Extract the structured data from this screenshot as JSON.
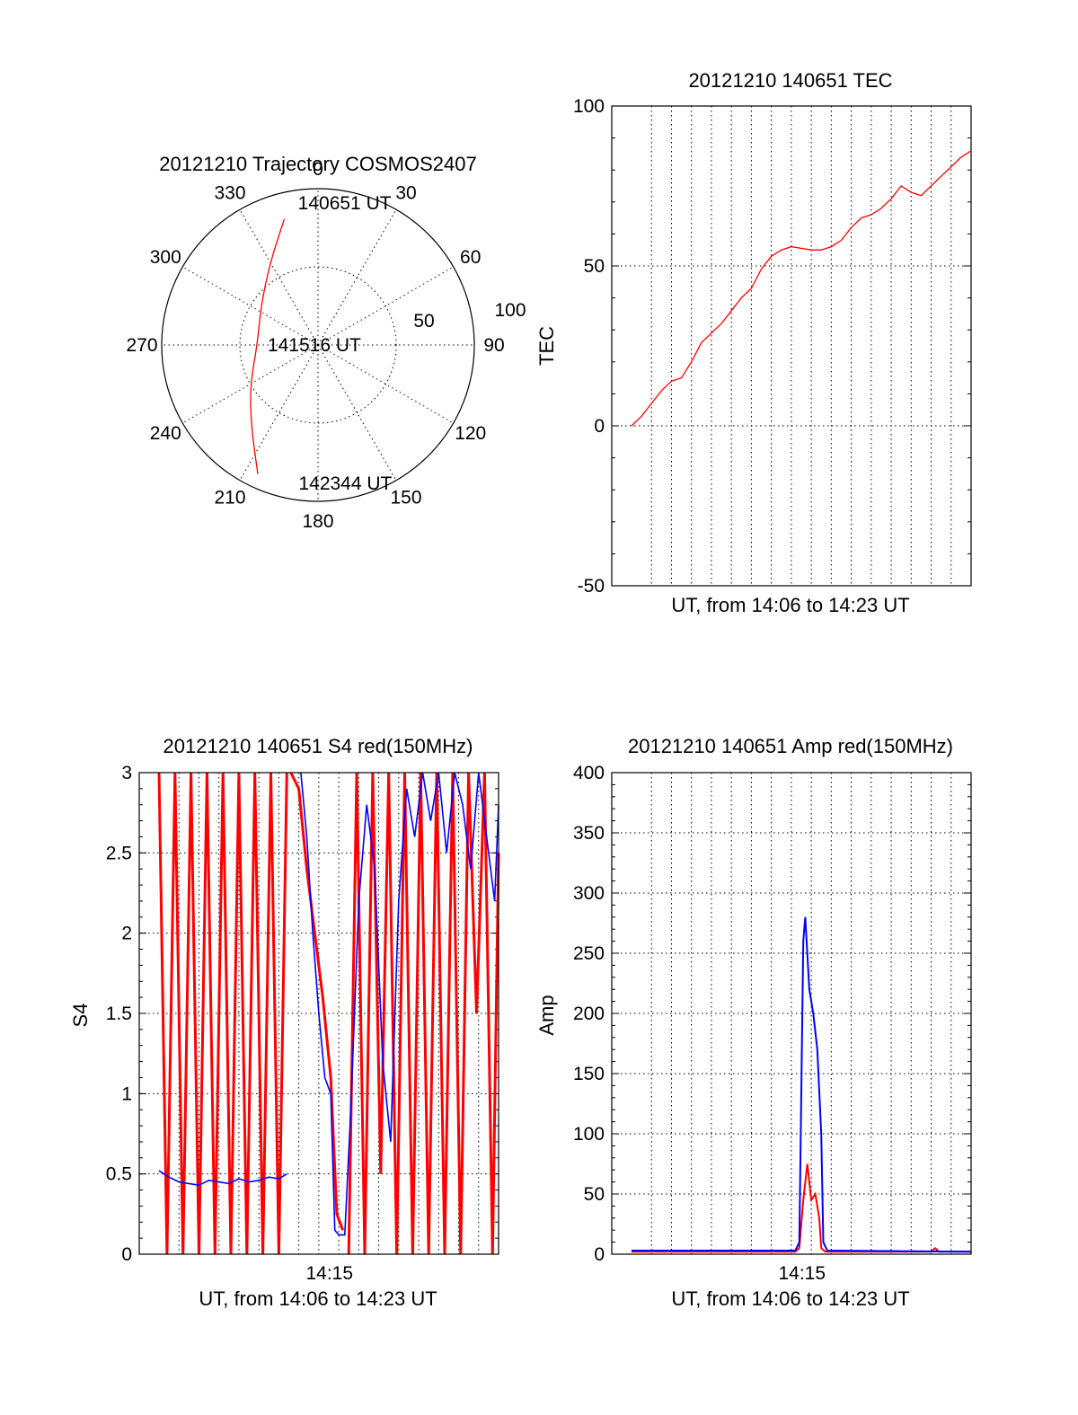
{
  "chart_data": [
    {
      "id": "trajectory",
      "type": "polar",
      "title": "20121210 Trajectory COSMOS2407",
      "angle_labels": [
        "0",
        "30",
        "60",
        "90",
        "120",
        "150",
        "180",
        "210",
        "240",
        "270",
        "300",
        "330"
      ],
      "radial_labels": [
        "50",
        "100"
      ],
      "zenith_max": 90,
      "colors": {
        "track": "#ff0000"
      },
      "track": [
        {
          "azimuth": 345,
          "zenith": 75
        },
        {
          "azimuth": 330,
          "zenith": 55
        },
        {
          "azimuth": 305,
          "zenith": 40
        },
        {
          "azimuth": 270,
          "zenith": 35
        },
        {
          "azimuth": 240,
          "zenith": 45
        },
        {
          "azimuth": 220,
          "zenith": 60
        },
        {
          "azimuth": 205,
          "zenith": 82
        }
      ],
      "annotations": [
        {
          "text": "140651 UT",
          "azimuth": 352,
          "zenith": 83
        },
        {
          "text": "141516 UT",
          "azimuth": 271,
          "zenith": 29
        },
        {
          "text": "142344 UT",
          "azimuth": 188,
          "zenith": 80
        }
      ]
    },
    {
      "id": "tec",
      "type": "line",
      "title": "20121210 140651 TEC",
      "xlabel": "UT, from 14:06 to 14:23 UT",
      "ylabel": "TEC",
      "ylim": [
        -50,
        100
      ],
      "yticks": [
        "100",
        "50",
        "0",
        "-50"
      ],
      "xlim": [
        0,
        17
      ],
      "grid": true,
      "colors": {
        "line": "#ff0000"
      },
      "series": [
        {
          "x": [
            0,
            0.5,
            1,
            1.5,
            2,
            2.5,
            3,
            3.5,
            4,
            4.5,
            5,
            5.5,
            6,
            6.5,
            7,
            7.5,
            8,
            8.5,
            9,
            9.5,
            10,
            10.5,
            11,
            11.5,
            12,
            12.5,
            13,
            13.5,
            14,
            14.5,
            15,
            15.5,
            16,
            16.5,
            17
          ],
          "values": [
            0,
            3,
            7,
            11,
            14,
            15,
            20,
            26,
            29,
            32,
            36,
            40,
            43,
            49,
            53,
            55,
            56,
            55.5,
            55,
            55,
            56,
            58,
            62,
            65,
            66,
            68,
            71,
            75,
            73,
            72,
            75,
            78,
            81,
            84,
            86
          ]
        }
      ]
    },
    {
      "id": "s4",
      "type": "line",
      "title": "20121210 140651 S4 red(150MHz)",
      "xlabel": "UT, from 14:06 to 14:23 UT",
      "ylabel": "S4",
      "ylim": [
        0,
        3
      ],
      "yticks": [
        "3",
        "2.5",
        "2",
        "1.5",
        "1",
        "0.5",
        "0"
      ],
      "xlim": [
        0,
        17
      ],
      "xticks": [
        {
          "x": 9,
          "label": "14:15"
        }
      ],
      "grid": true,
      "colors": {
        "red": "#ff0000",
        "blue": "#0000ff"
      },
      "series": [
        {
          "color": "red",
          "segments": [
            {
              "x": [
                0,
                0.4,
                0.8,
                1.2,
                1.6,
                2,
                2.4,
                2.8,
                3.2,
                3.6,
                4,
                4.4,
                4.8,
                5.2,
                5.6,
                6,
                6.4
              ],
              "values": [
                3,
                0,
                3,
                0,
                3,
                0,
                3,
                0,
                3,
                0,
                3,
                0,
                3,
                0,
                3,
                0,
                3
              ]
            },
            {
              "x": [
                6.6,
                7,
                7.4,
                7.8,
                8.2,
                8.6,
                8.9,
                9.2
              ],
              "values": [
                3,
                2.9,
                2.4,
                2.0,
                1.6,
                1.1,
                0.25,
                0.15
              ]
            },
            {
              "x": [
                9.5,
                9.9,
                10.3,
                10.7,
                11.1,
                11.5,
                11.9,
                12.3,
                12.7,
                13.1,
                13.5,
                13.9,
                14.3,
                14.7,
                15.1,
                15.5,
                15.9,
                16.3,
                16.7,
                17
              ],
              "values": [
                0,
                3,
                0,
                3,
                0.5,
                3,
                0,
                3,
                0,
                3,
                0,
                3,
                0,
                3,
                0,
                3,
                1.5,
                3,
                0,
                2.5
              ]
            }
          ]
        },
        {
          "color": "blue",
          "segments": [
            {
              "x": [
                0,
                0.5,
                1,
                1.5,
                2,
                2.5,
                3,
                3.5,
                4,
                4.5,
                5,
                5.5,
                6,
                6.4
              ],
              "values": [
                0.52,
                0.48,
                0.45,
                0.44,
                0.43,
                0.46,
                0.45,
                0.44,
                0.47,
                0.45,
                0.46,
                0.48,
                0.47,
                0.5
              ]
            },
            {
              "x": [
                7.1,
                7.4,
                7.7,
                8.0,
                8.3,
                8.6,
                8.8,
                9.0,
                9.3,
                9.6
              ],
              "values": [
                3.0,
                2.6,
                2.0,
                1.5,
                1.1,
                1.0,
                0.15,
                0.12,
                0.12,
                0.9
              ]
            },
            {
              "x": [
                9.6,
                10,
                10.4,
                10.8,
                11.2,
                11.6,
                12,
                12.4,
                12.8,
                13.2,
                13.6,
                14,
                14.4,
                14.8,
                15.2,
                15.6,
                16,
                16.4,
                16.8,
                17
              ],
              "values": [
                0.9,
                2.2,
                2.8,
                2.4,
                1.2,
                0.7,
                2.2,
                2.9,
                2.6,
                3.0,
                2.7,
                3.0,
                2.5,
                3.0,
                2.8,
                2.4,
                3.0,
                2.6,
                2.2,
                2.8
              ]
            }
          ]
        }
      ]
    },
    {
      "id": "amp",
      "type": "line",
      "title": "20121210 140651 Amp red(150MHz)",
      "xlabel": "UT, from 14:06 to 14:23 UT",
      "ylabel": "Amp",
      "ylim": [
        0,
        400
      ],
      "yticks": [
        "400",
        "350",
        "300",
        "250",
        "200",
        "150",
        "100",
        "50",
        "0"
      ],
      "xlim": [
        0,
        17
      ],
      "xticks": [
        {
          "x": 9,
          "label": "14:15"
        }
      ],
      "grid": true,
      "colors": {
        "red": "#ff0000",
        "blue": "#0000ff"
      },
      "series": [
        {
          "color": "red",
          "x": [
            0,
            8.2,
            8.4,
            8.6,
            8.8,
            9.0,
            9.2,
            9.4,
            9.5,
            9.7,
            15,
            15.2,
            15.4,
            17
          ],
          "values": [
            2,
            2,
            5,
            45,
            75,
            45,
            50,
            30,
            5,
            2,
            2,
            5,
            2,
            2
          ]
        },
        {
          "color": "blue",
          "x": [
            0,
            6.5,
            8.2,
            8.4,
            8.6,
            8.7,
            8.9,
            9.1,
            9.3,
            9.5,
            9.6,
            9.8,
            17
          ],
          "values": [
            3,
            3,
            3,
            10,
            260,
            280,
            220,
            200,
            170,
            100,
            10,
            3,
            2
          ]
        }
      ]
    }
  ]
}
